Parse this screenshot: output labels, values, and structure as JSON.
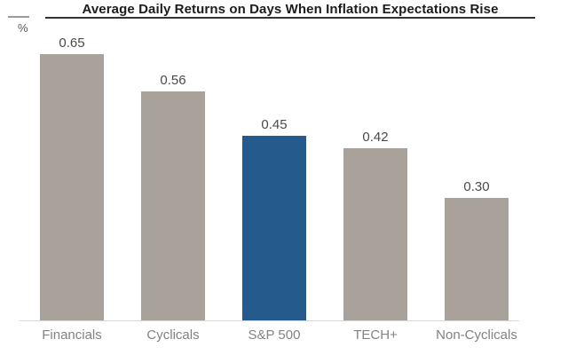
{
  "title": "Average Daily Returns on Days When Inflation Expectations Rise",
  "y_axis_unit": "%",
  "chart_data": {
    "type": "bar",
    "title": "Average Daily Returns on Days When Inflation Expectations Rise",
    "categories": [
      "Financials",
      "Cyclicals",
      "S&P 500",
      "TECH+",
      "Non-Cyclicals"
    ],
    "values": [
      0.65,
      0.56,
      0.45,
      0.42,
      0.3
    ],
    "value_labels": [
      "0.65",
      "0.56",
      "0.45",
      "0.42",
      "0.30"
    ],
    "xlabel": "",
    "ylabel": "%",
    "ylim": [
      0,
      0.7
    ],
    "grid": false,
    "legend": "none",
    "highlight_index": 2,
    "highlight_series": "S&P 500"
  },
  "colors": {
    "bar": "#a8a29b",
    "highlight": "#245a8c",
    "axis_line": "#d9d9d9",
    "title_rule": "#333333",
    "value_label": "#4a4a4a",
    "category_label": "#828282"
  }
}
